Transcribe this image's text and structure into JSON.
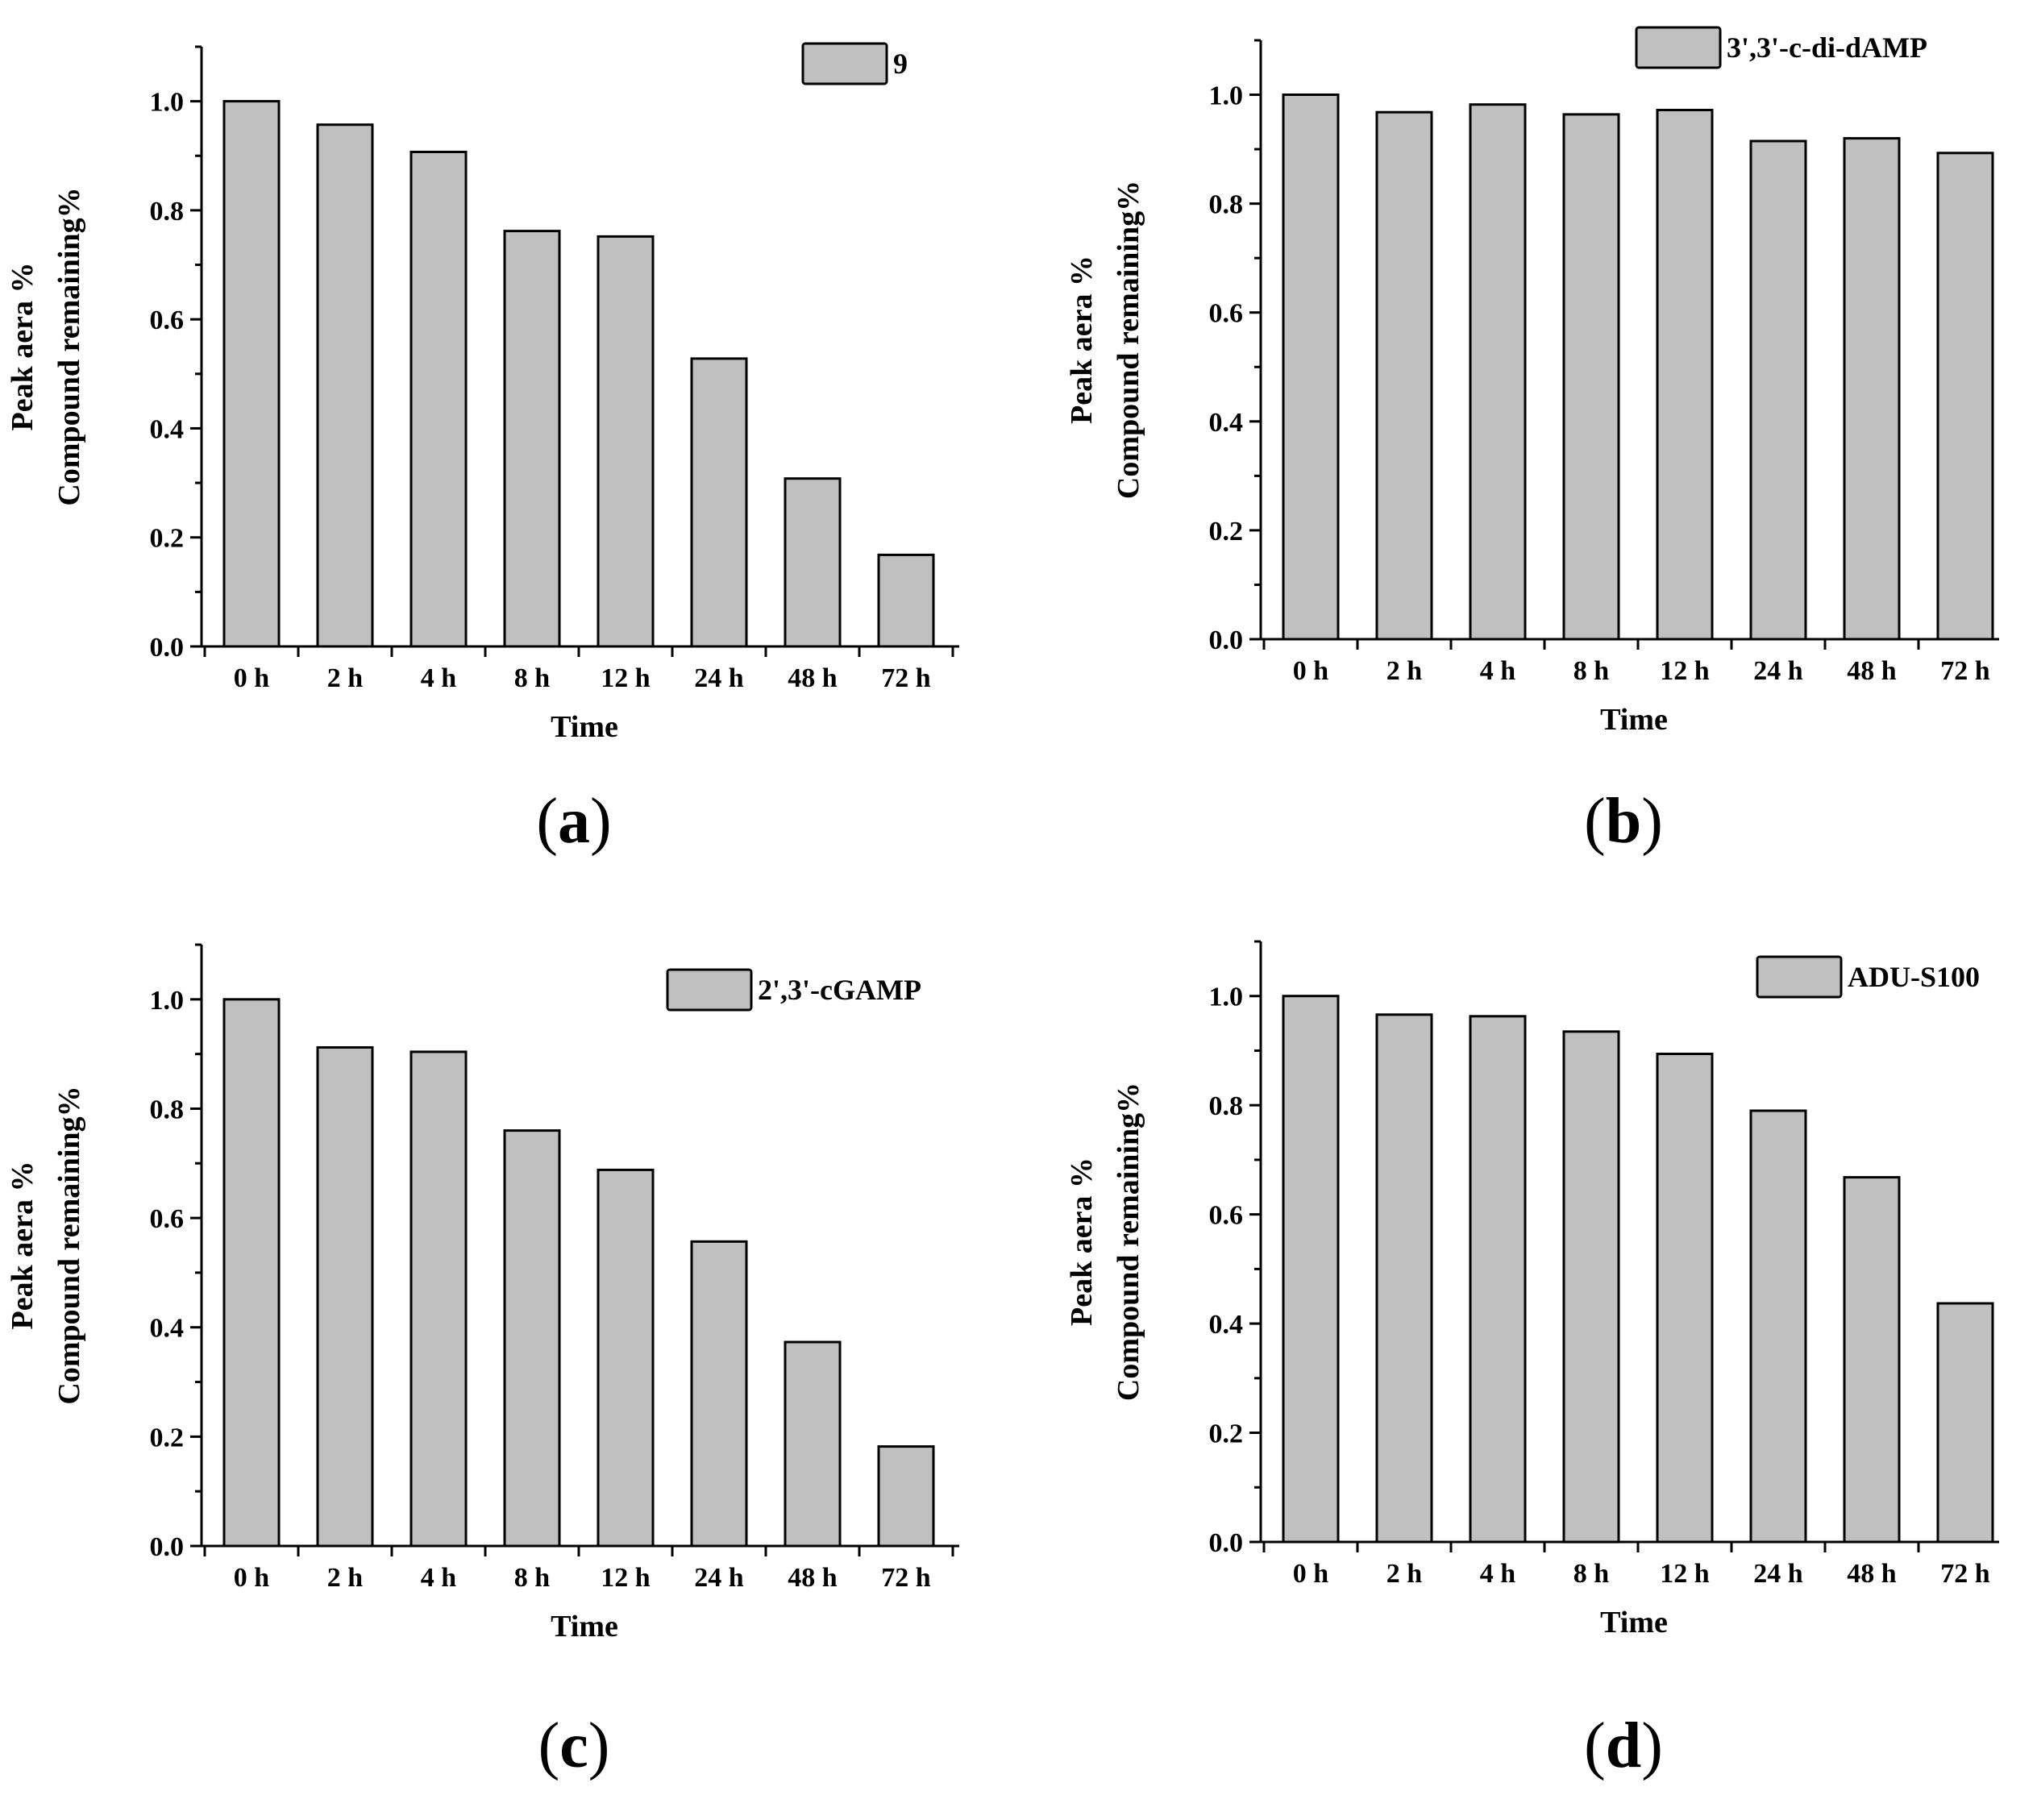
{
  "chart_data": [
    {
      "panel": "(a)",
      "panel_letter": "a",
      "type": "bar",
      "categories": [
        "0 h",
        "2 h",
        "4 h",
        "8 h",
        "12 h",
        "24 h",
        "48 h",
        "72 h"
      ],
      "series": [
        {
          "name": "9",
          "values": [
            1.0,
            0.957,
            0.907,
            0.762,
            0.752,
            0.528,
            0.308,
            0.168
          ],
          "color": "#c0c0c0"
        }
      ],
      "xlabel": "Time",
      "ylabel_lines": [
        "Peak aera %",
        "Compound remaining%"
      ],
      "ylim": [
        0,
        1.1
      ],
      "yticks": [
        0.0,
        0.2,
        0.4,
        0.6,
        0.8,
        1.0
      ],
      "ytick_labels": [
        "0.0",
        "0.2",
        "0.4",
        "0.6",
        "0.8",
        "1.0"
      ],
      "legend": "top-right"
    },
    {
      "panel": "(b)",
      "panel_letter": "b",
      "type": "bar",
      "categories": [
        "0 h",
        "2 h",
        "4 h",
        "8 h",
        "12 h",
        "24 h",
        "48 h",
        "72 h"
      ],
      "series": [
        {
          "name": "3',3'-c-di-dAMP",
          "values": [
            1.0,
            0.968,
            0.982,
            0.964,
            0.972,
            0.915,
            0.92,
            0.893
          ],
          "color": "#c0c0c0"
        }
      ],
      "xlabel": "Time",
      "ylabel_lines": [
        "Peak aera %",
        "Compound remaining%"
      ],
      "ylim": [
        0,
        1.1
      ],
      "yticks": [
        0.0,
        0.2,
        0.4,
        0.6,
        0.8,
        1.0
      ],
      "ytick_labels": [
        "0.0",
        "0.2",
        "0.4",
        "0.6",
        "0.8",
        "1.0"
      ],
      "legend": "top-right"
    },
    {
      "panel": "(c)",
      "panel_letter": "c",
      "type": "bar",
      "categories": [
        "0 h",
        "2 h",
        "4 h",
        "8 h",
        "12 h",
        "24 h",
        "48 h",
        "72 h"
      ],
      "series": [
        {
          "name": "2',3'-cGAMP",
          "values": [
            1.0,
            0.912,
            0.904,
            0.76,
            0.688,
            0.557,
            0.373,
            0.182
          ],
          "color": "#c0c0c0"
        }
      ],
      "xlabel": "Time",
      "ylabel_lines": [
        "Peak aera %",
        "Compound remaining%"
      ],
      "ylim": [
        0,
        1.1
      ],
      "yticks": [
        0.0,
        0.2,
        0.4,
        0.6,
        0.8,
        1.0
      ],
      "ytick_labels": [
        "0.0",
        "0.2",
        "0.4",
        "0.6",
        "0.8",
        "1.0"
      ],
      "legend": "top-right"
    },
    {
      "panel": "(d)",
      "panel_letter": "d",
      "type": "bar",
      "categories": [
        "0 h",
        "2 h",
        "4 h",
        "8 h",
        "12 h",
        "24 h",
        "48 h",
        "72 h"
      ],
      "series": [
        {
          "name": "ADU-S100",
          "values": [
            1.0,
            0.966,
            0.963,
            0.935,
            0.894,
            0.79,
            0.668,
            0.437
          ],
          "color": "#c0c0c0"
        }
      ],
      "xlabel": "Time",
      "ylabel_lines": [
        "Peak aera %",
        "Compound remaining%"
      ],
      "ylim": [
        0,
        1.1
      ],
      "yticks": [
        0.0,
        0.2,
        0.4,
        0.6,
        0.8,
        1.0
      ],
      "ytick_labels": [
        "0.0",
        "0.2",
        "0.4",
        "0.6",
        "0.8",
        "1.0"
      ],
      "legend": "top-right"
    }
  ]
}
